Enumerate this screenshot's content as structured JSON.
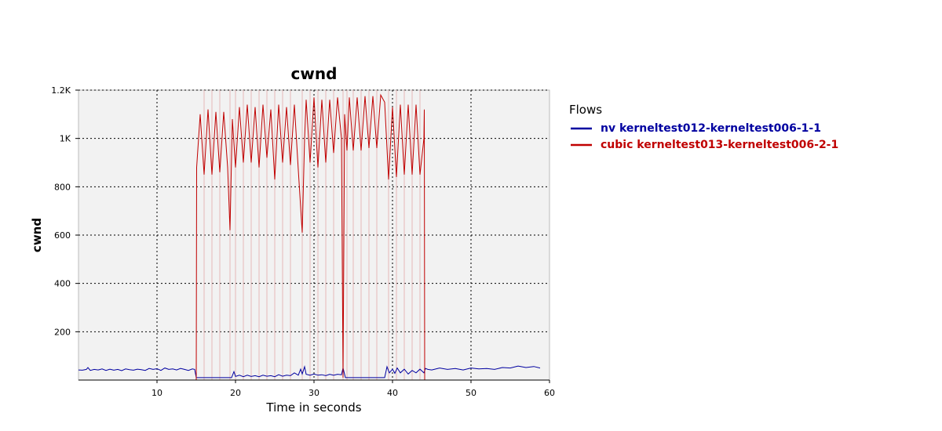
{
  "chart_data": {
    "type": "line",
    "title": "cwnd",
    "xlabel": "Time in seconds",
    "ylabel": "cwnd",
    "xlim": [
      0,
      60
    ],
    "ylim": [
      0,
      1200
    ],
    "x_ticks": [
      10,
      20,
      30,
      40,
      50,
      60
    ],
    "x_tick_labels": [
      "10",
      "20",
      "30",
      "40",
      "50",
      "60"
    ],
    "y_ticks": [
      200,
      400,
      600,
      800,
      1000,
      1200
    ],
    "y_tick_labels": [
      "200",
      "400",
      "600",
      "800",
      "1K",
      "1.2K"
    ],
    "grid": true,
    "legend_title": "Flows",
    "legend_position": "right",
    "series": [
      {
        "name": "nv kerneltest012-kerneltest006-1-1",
        "color": "#0000a0",
        "x": [
          0,
          0.5,
          1,
          1.2,
          1.5,
          2,
          2.5,
          3,
          3.5,
          4,
          4.5,
          5,
          5.5,
          6,
          6.5,
          7,
          7.5,
          8,
          8.5,
          9,
          9.5,
          10,
          10.5,
          11,
          11.5,
          12,
          12.5,
          13,
          13.5,
          14,
          14.5,
          14.8,
          15,
          16,
          17,
          18,
          19,
          19.5,
          19.8,
          20,
          20.5,
          21,
          21.5,
          22,
          22.5,
          23,
          23.5,
          24,
          24.5,
          25,
          25.5,
          26,
          26.5,
          27,
          27.5,
          28,
          28.3,
          28.5,
          28.8,
          29,
          29.5,
          30,
          30.5,
          31,
          31.5,
          32,
          32.5,
          33,
          33.5,
          33.7,
          34,
          35,
          36,
          37,
          38,
          39,
          39.3,
          39.6,
          40,
          40.3,
          40.6,
          41,
          41.5,
          42,
          42.5,
          43,
          43.5,
          44,
          44.2,
          44.5,
          45,
          46,
          47,
          48,
          49,
          50,
          51,
          52,
          53,
          54,
          55,
          56,
          57,
          58,
          58.8
        ],
        "values": [
          42,
          41,
          44,
          52,
          40,
          44,
          42,
          46,
          40,
          45,
          41,
          44,
          39,
          46,
          43,
          41,
          45,
          43,
          40,
          48,
          44,
          47,
          40,
          50,
          44,
          46,
          42,
          48,
          44,
          40,
          46,
          44,
          10,
          10,
          10,
          10,
          10,
          10,
          35,
          15,
          20,
          14,
          20,
          15,
          18,
          14,
          20,
          16,
          18,
          14,
          22,
          16,
          20,
          18,
          30,
          20,
          45,
          25,
          55,
          24,
          20,
          25,
          20,
          22,
          18,
          24,
          20,
          24,
          22,
          50,
          10,
          10,
          10,
          10,
          10,
          10,
          55,
          30,
          45,
          28,
          50,
          30,
          45,
          25,
          40,
          30,
          45,
          30,
          48,
          44,
          42,
          50,
          44,
          48,
          42,
          50,
          46,
          48,
          44,
          52,
          50,
          58,
          52,
          56,
          50
        ]
      },
      {
        "name": "cubic kerneltest013-kerneltest006-2-1",
        "color": "#c00000",
        "x": [
          0,
          15,
          15.05,
          15.5,
          16,
          16.5,
          17,
          17.5,
          18,
          18.5,
          19,
          19.3,
          19.6,
          20,
          20.5,
          21,
          21.5,
          22,
          22.5,
          23,
          23.5,
          24,
          24.5,
          25,
          25.5,
          26,
          26.5,
          27,
          27.5,
          28,
          28.5,
          28.8,
          29,
          29.5,
          30,
          30.5,
          31,
          31.5,
          32,
          32.5,
          33,
          33.5,
          33.7,
          33.9,
          34.2,
          34.5,
          35,
          35.5,
          36,
          36.5,
          37,
          37.5,
          38,
          38.5,
          39,
          39.5,
          40,
          40.5,
          41,
          41.5,
          42,
          42.5,
          43,
          43.5,
          44,
          44.05,
          44.1,
          60
        ],
        "values": [
          0,
          0,
          880,
          1100,
          850,
          1120,
          850,
          1110,
          860,
          1110,
          880,
          620,
          1080,
          880,
          1130,
          900,
          1140,
          900,
          1130,
          880,
          1140,
          920,
          1120,
          830,
          1140,
          900,
          1130,
          890,
          1140,
          870,
          610,
          1000,
          1160,
          900,
          1170,
          880,
          1160,
          900,
          1160,
          940,
          1170,
          1000,
          10,
          1100,
          950,
          1170,
          950,
          1170,
          950,
          1175,
          960,
          1175,
          960,
          1180,
          1150,
          830,
          1130,
          840,
          1140,
          850,
          1140,
          850,
          1140,
          850,
          1000,
          1120,
          0,
          0
        ]
      }
    ]
  }
}
